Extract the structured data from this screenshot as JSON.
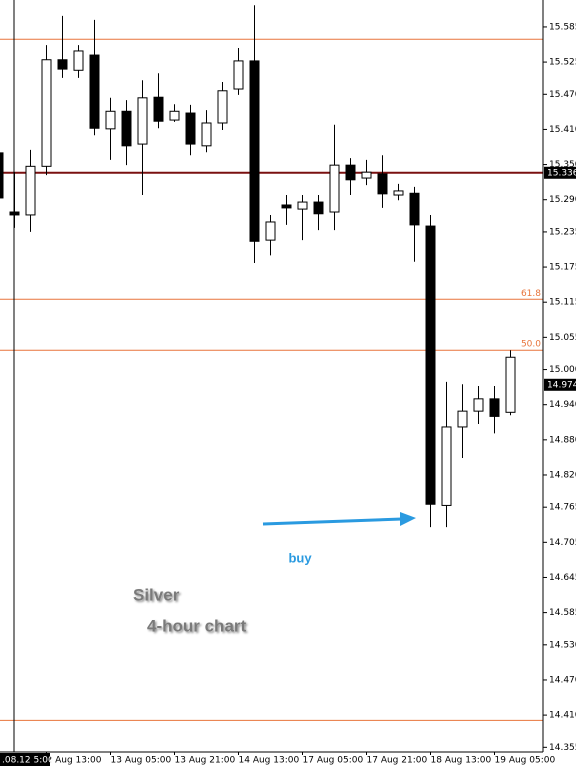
{
  "chart_data": {
    "type": "candlestick",
    "title": "Silver",
    "subtitle": "4-hour chart",
    "annotation": "buy",
    "crosshair_label": ".08.12 5:00",
    "categories": [
      null,
      null,
      null,
      "2 Aug 13:00",
      null,
      null,
      null,
      "13 Aug 05:00",
      null,
      null,
      null,
      "13 Aug 21:00",
      null,
      null,
      null,
      "14 Aug 13:00",
      null,
      null,
      null,
      "17 Aug 05:00",
      null,
      null,
      null,
      "17 Aug 21:00",
      null,
      null,
      null,
      "18 Aug 13:00",
      null,
      null,
      null,
      "19 Aug 05:00",
      null
    ],
    "open": [
      15.37,
      15.269,
      15.264,
      15.347,
      15.529,
      15.511,
      15.537,
      15.411,
      15.441,
      15.385,
      15.465,
      15.426,
      15.438,
      15.382,
      15.421,
      15.479,
      15.527,
      15.221,
      15.281,
      15.274,
      15.286,
      15.269,
      15.349,
      15.327,
      15.334,
      15.298,
      15.301,
      15.245,
      14.768,
      14.902,
      14.929,
      14.95,
      14.927
    ],
    "high": [
      15.375,
      15.337,
      15.375,
      15.554,
      15.604,
      15.554,
      15.597,
      15.464,
      15.46,
      15.494,
      15.506,
      15.453,
      15.452,
      15.443,
      15.491,
      15.549,
      15.622,
      15.264,
      15.298,
      15.298,
      15.298,
      15.418,
      15.361,
      15.358,
      15.366,
      15.317,
      15.312,
      15.264,
      14.979,
      14.975,
      14.972,
      14.972,
      15.033
    ],
    "low": [
      15.289,
      15.242,
      15.235,
      15.332,
      15.498,
      15.498,
      15.4,
      15.358,
      15.349,
      15.298,
      15.412,
      15.423,
      15.366,
      15.371,
      15.409,
      15.469,
      15.182,
      15.195,
      15.247,
      15.221,
      15.238,
      15.238,
      15.298,
      15.315,
      15.276,
      15.289,
      15.184,
      14.731,
      14.731,
      14.849,
      14.907,
      14.891,
      14.922
    ],
    "close": [
      15.293,
      15.264,
      15.347,
      15.529,
      15.513,
      15.544,
      15.412,
      15.441,
      15.382,
      15.464,
      15.424,
      15.441,
      15.385,
      15.421,
      15.476,
      15.527,
      15.219,
      15.252,
      15.276,
      15.286,
      15.266,
      15.349,
      15.324,
      15.337,
      15.3,
      15.305,
      15.247,
      14.77,
      14.902,
      14.929,
      14.95,
      14.92,
      15.021
    ],
    "up_color": "#ffffff",
    "down_color": "#000000",
    "ylim": [
      14.347,
      15.631
    ],
    "yticks": [
      15.585,
      15.525,
      {
        "value": 15.47,
        "label": "15.470"
      },
      {
        "value": 15.41,
        "label": "15.410"
      },
      {
        "value": 15.35,
        "label": "15.350"
      },
      {
        "value": 15.29,
        "label": "15.290"
      },
      15.235,
      15.175,
      15.115,
      15.055,
      {
        "value": 15.0,
        "label": "15.000"
      },
      {
        "value": 14.94,
        "label": "14.940"
      },
      {
        "value": 14.88,
        "label": "14.880"
      },
      {
        "value": 14.82,
        "label": "14.820"
      },
      14.765,
      14.705,
      14.645,
      14.585,
      {
        "value": 14.53,
        "label": "14.530"
      },
      {
        "value": 14.47,
        "label": "14.470"
      },
      {
        "value": 14.41,
        "label": "14.410"
      },
      14.355
    ],
    "levels": [
      {
        "value": 15.564,
        "color": "#e8743b"
      },
      {
        "value": 15.336,
        "color": "#7a1010",
        "price_label": "15.336"
      },
      {
        "value": 15.12,
        "color": "#e8743b",
        "label": "61.8"
      },
      {
        "value": 15.033,
        "color": "#e8743b",
        "label": "50.0"
      },
      {
        "value": 14.401,
        "color": "#e8743b"
      }
    ],
    "current_price": {
      "value": 14.974,
      "label": "14.974"
    }
  }
}
